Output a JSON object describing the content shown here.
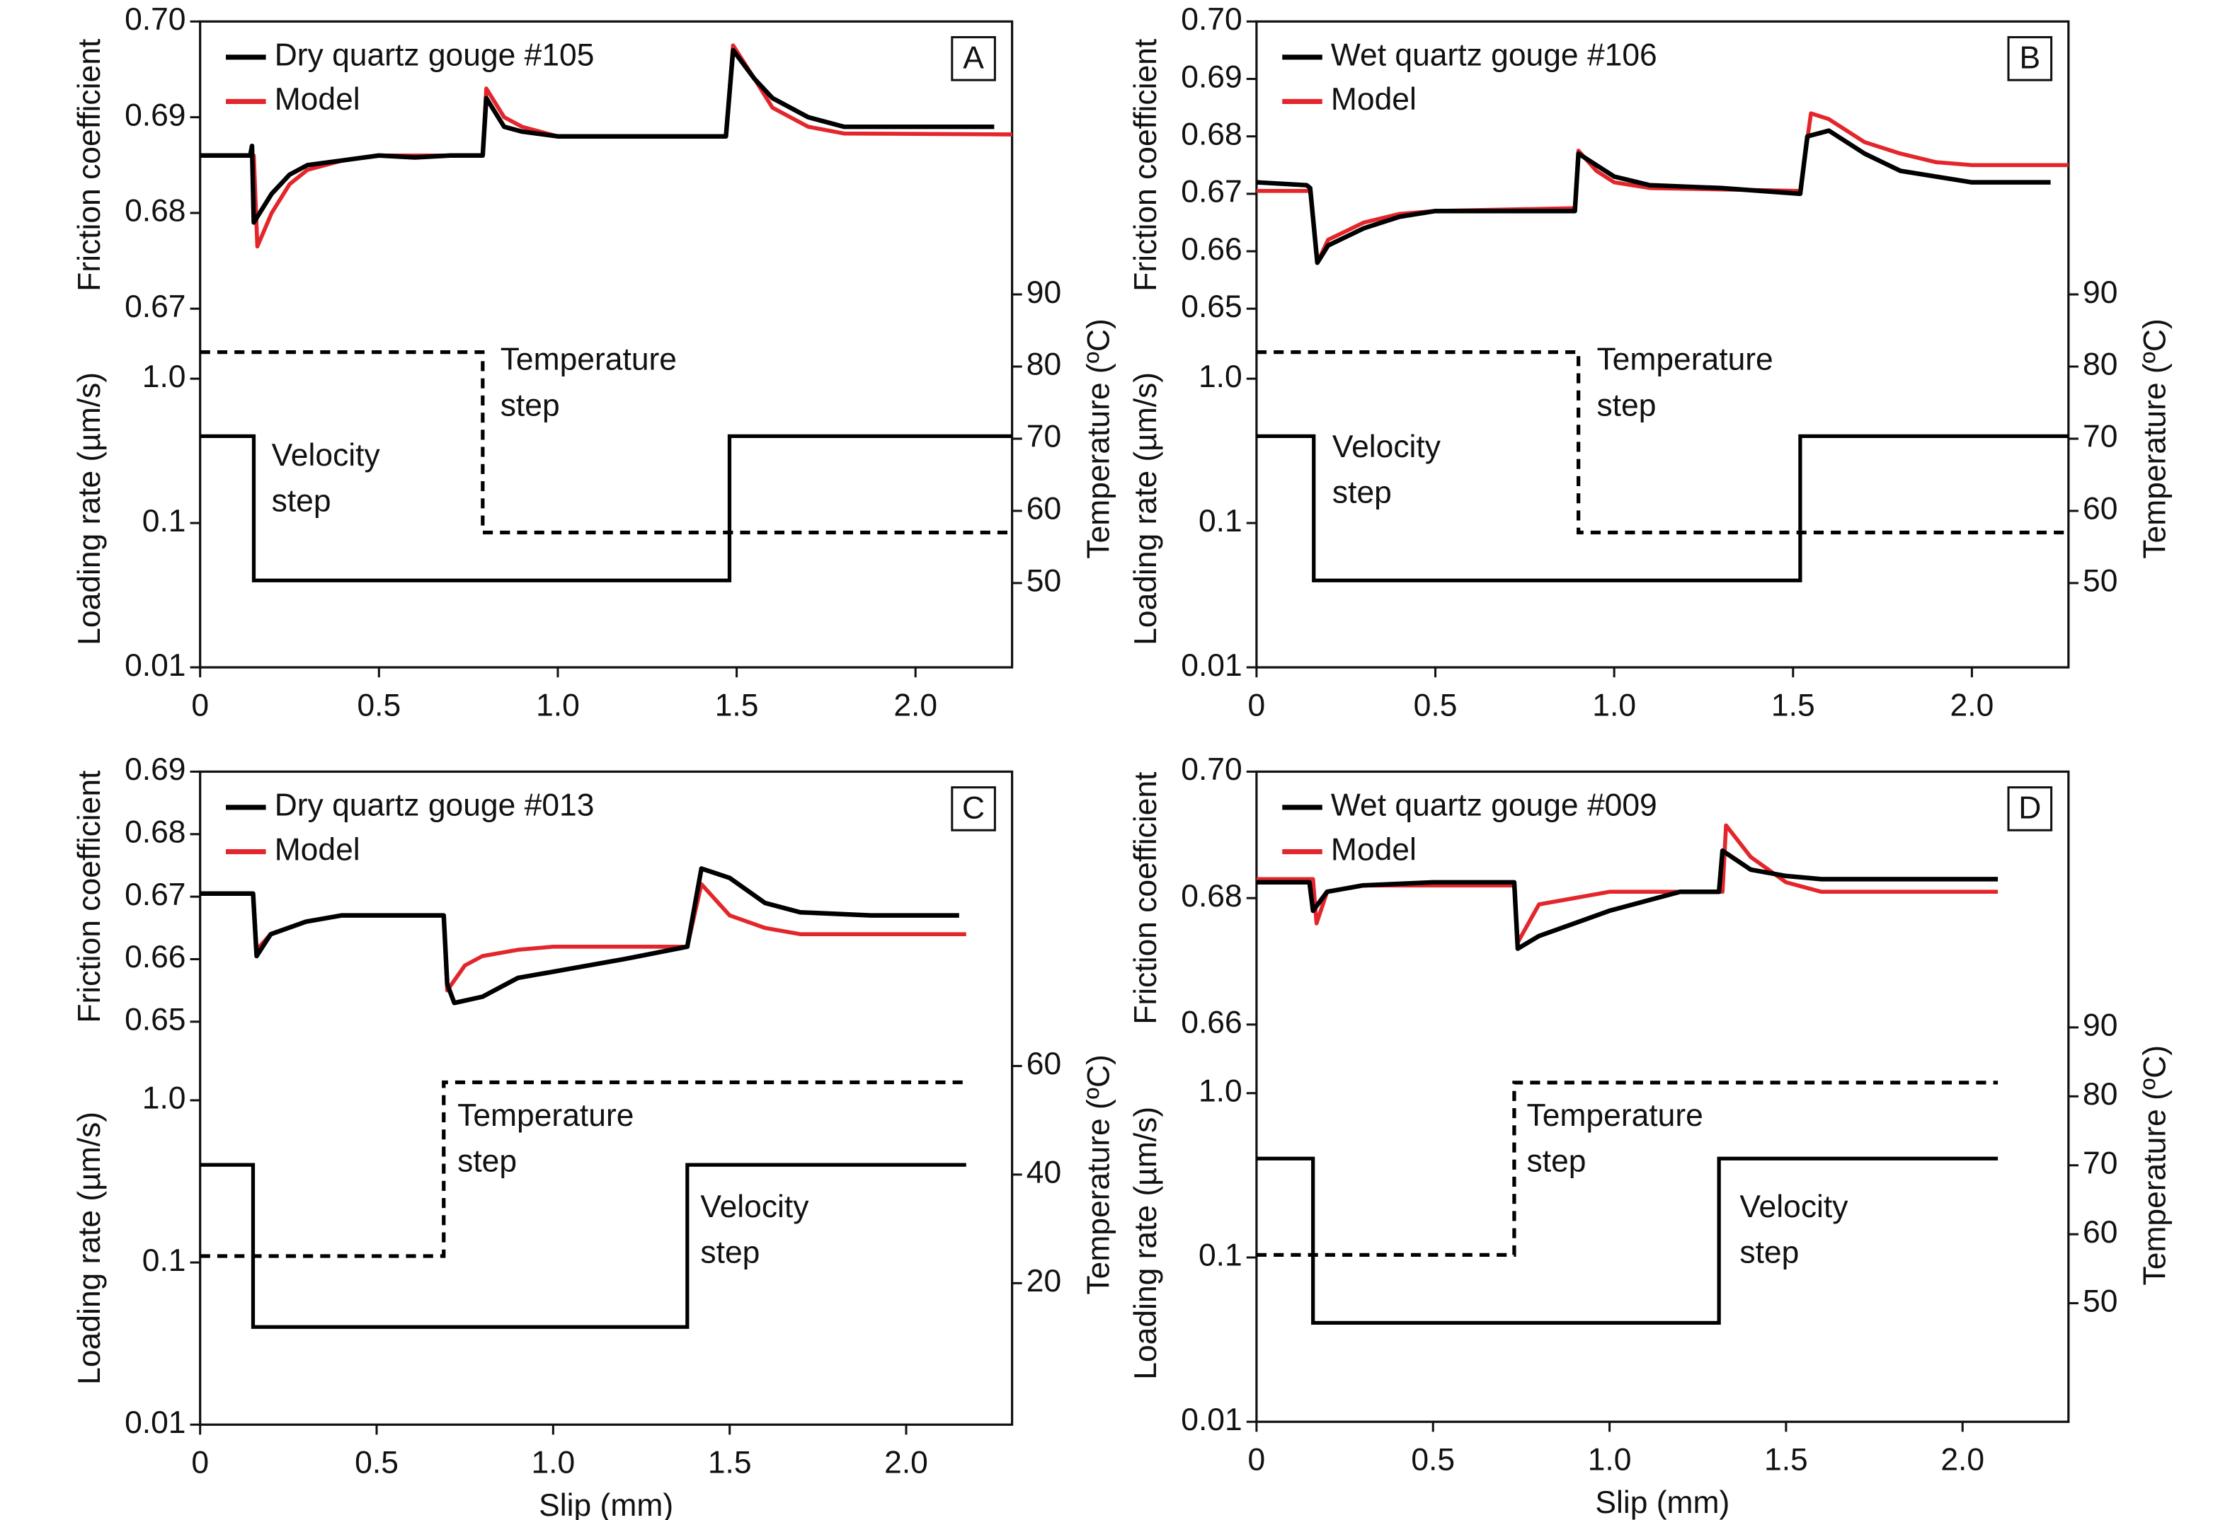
{
  "chart_data": [
    {
      "type": "line",
      "panel": "A",
      "legend": "upper left",
      "xlim": [
        0,
        2.27
      ],
      "xticks": [
        0,
        0.5,
        {
          "value": 1,
          "label": "1.0"
        },
        1.5,
        {
          "value": 2,
          "label": "2.0"
        }
      ],
      "friction": {
        "ylabel": "Friction coefficient",
        "ylim": [
          0.67,
          0.7
        ],
        "yticks": [
          0.67,
          0.68,
          0.69,
          {
            "value": 0.7,
            "label": "0.70"
          }
        ],
        "series": [
          {
            "name": "Dry quartz gouge #105",
            "color": "#000000",
            "x": [
              0,
              0.14,
              0.145,
              0.15,
              0.2,
              0.25,
              0.3,
              0.4,
              0.5,
              0.6,
              0.7,
              0.79,
              0.8,
              0.85,
              0.9,
              1.0,
              1.2,
              1.47,
              1.49,
              1.55,
              1.6,
              1.7,
              1.8,
              2.0,
              2.22
            ],
            "values": [
              0.686,
              0.686,
              0.687,
              0.679,
              0.682,
              0.684,
              0.685,
              0.6855,
              0.686,
              0.6858,
              0.686,
              0.686,
              0.692,
              0.689,
              0.6885,
              0.688,
              0.688,
              0.688,
              0.697,
              0.694,
              0.692,
              0.69,
              0.689,
              0.689,
              0.689
            ]
          },
          {
            "name": "Model",
            "color": "#e3262b",
            "x": [
              0,
              0.15,
              0.16,
              0.2,
              0.25,
              0.3,
              0.4,
              0.5,
              0.79,
              0.8,
              0.85,
              0.9,
              1.0,
              1.47,
              1.49,
              1.55,
              1.6,
              1.7,
              1.8,
              2.27
            ],
            "values": [
              0.686,
              0.686,
              0.6765,
              0.68,
              0.683,
              0.6845,
              0.6855,
              0.686,
              0.686,
              0.693,
              0.69,
              0.689,
              0.688,
              0.688,
              0.6975,
              0.694,
              0.691,
              0.689,
              0.6883,
              0.6882
            ]
          }
        ]
      },
      "loading": {
        "ylabel": "Loading rate (µm/s)",
        "log": true,
        "ylim": [
          0.01,
          1
        ],
        "yticks": [
          0.01,
          0.1,
          {
            "value": 1,
            "label": "1.0"
          }
        ],
        "color": "#000000",
        "x": [
          0,
          0.15,
          0.15,
          1.48,
          1.48,
          2.27
        ],
        "values": [
          0.4,
          0.4,
          0.04,
          0.04,
          0.4,
          0.4
        ]
      },
      "temperature": {
        "ylabel": "Temperature (ºC)",
        "y2lim": [
          50,
          90
        ],
        "y2ticks": [
          50,
          60,
          70,
          80,
          90
        ],
        "color": "#000000",
        "x": [
          0,
          0.79,
          0.79,
          2.27
        ],
        "values": [
          82,
          82,
          57,
          57
        ]
      },
      "annotations": [
        [
          "Velocity",
          "step"
        ],
        [
          "Temperature",
          "step"
        ]
      ]
    },
    {
      "type": "line",
      "panel": "B",
      "legend": "upper left",
      "xlim": [
        0,
        2.27
      ],
      "xticks": [
        0,
        0.5,
        {
          "value": 1,
          "label": "1.0"
        },
        1.5,
        {
          "value": 2,
          "label": "2.0"
        }
      ],
      "friction": {
        "ylabel": "Friction coefficient",
        "ylim": [
          0.65,
          0.7
        ],
        "yticks": [
          0.65,
          0.66,
          0.67,
          0.68,
          0.69,
          {
            "value": 0.7,
            "label": "0.70"
          }
        ],
        "series": [
          {
            "name": "Wet quartz gouge #106",
            "color": "#000000",
            "x": [
              0,
              0.14,
              0.15,
              0.17,
              0.2,
              0.3,
              0.4,
              0.5,
              0.7,
              0.89,
              0.9,
              0.95,
              1.0,
              1.1,
              1.3,
              1.52,
              1.54,
              1.6,
              1.7,
              1.8,
              1.9,
              2.0,
              2.22
            ],
            "values": [
              0.672,
              0.6715,
              0.671,
              0.658,
              0.661,
              0.664,
              0.666,
              0.667,
              0.667,
              0.667,
              0.677,
              0.675,
              0.673,
              0.6715,
              0.671,
              0.67,
              0.68,
              0.681,
              0.677,
              0.674,
              0.673,
              0.672,
              0.672
            ]
          },
          {
            "name": "Model",
            "color": "#e3262b",
            "x": [
              0,
              0.15,
              0.17,
              0.2,
              0.3,
              0.4,
              0.5,
              0.89,
              0.9,
              0.95,
              1.0,
              1.1,
              1.52,
              1.55,
              1.6,
              1.7,
              1.8,
              1.9,
              2.0,
              2.27
            ],
            "values": [
              0.6705,
              0.6705,
              0.658,
              0.662,
              0.665,
              0.6665,
              0.667,
              0.6675,
              0.6775,
              0.674,
              0.672,
              0.671,
              0.6705,
              0.684,
              0.683,
              0.679,
              0.677,
              0.6755,
              0.675,
              0.675
            ]
          }
        ]
      },
      "loading": {
        "ylabel": "Loading rate (µm/s)",
        "log": true,
        "ylim": [
          0.01,
          1
        ],
        "yticks": [
          0.01,
          0.1,
          {
            "value": 1,
            "label": "1.0"
          }
        ],
        "color": "#000000",
        "x": [
          0,
          0.16,
          0.16,
          1.52,
          1.52,
          2.27
        ],
        "values": [
          0.4,
          0.4,
          0.04,
          0.04,
          0.4,
          0.4
        ]
      },
      "temperature": {
        "ylabel": "Temperature (ºC)",
        "y2lim": [
          50,
          90
        ],
        "y2ticks": [
          50,
          60,
          70,
          80,
          90
        ],
        "color": "#000000",
        "x": [
          0,
          0.9,
          0.9,
          2.27
        ],
        "values": [
          82,
          82,
          57,
          57
        ]
      },
      "annotations": [
        [
          "Velocity",
          "step"
        ],
        [
          "Temperature",
          "step"
        ]
      ]
    },
    {
      "type": "line",
      "panel": "C",
      "legend": "upper left",
      "xlabel": "Slip (mm)",
      "xlim": [
        0,
        2.3
      ],
      "xticks": [
        0,
        0.5,
        {
          "value": 1,
          "label": "1.0"
        },
        1.5,
        {
          "value": 2,
          "label": "2.0"
        }
      ],
      "friction": {
        "ylabel": "Friction coefficient",
        "ylim": [
          0.65,
          0.69
        ],
        "yticks": [
          0.65,
          0.66,
          0.67,
          0.68,
          0.69
        ],
        "series": [
          {
            "name": "Dry quartz gouge #013",
            "color": "#000000",
            "x": [
              0,
              0.15,
              0.16,
              0.2,
              0.3,
              0.4,
              0.69,
              0.7,
              0.72,
              0.8,
              0.9,
              1.0,
              1.2,
              1.38,
              1.42,
              1.5,
              1.6,
              1.7,
              1.9,
              2.15
            ],
            "values": [
              0.6705,
              0.6705,
              0.6605,
              0.664,
              0.666,
              0.667,
              0.667,
              0.656,
              0.653,
              0.654,
              0.657,
              0.658,
              0.66,
              0.662,
              0.6745,
              0.673,
              0.669,
              0.6675,
              0.667,
              0.667
            ]
          },
          {
            "name": "Model",
            "color": "#e3262b",
            "x": [
              0,
              0.15,
              0.16,
              0.2,
              0.3,
              0.4,
              0.69,
              0.7,
              0.75,
              0.8,
              0.9,
              1.0,
              1.38,
              1.42,
              1.5,
              1.6,
              1.7,
              2.17
            ],
            "values": [
              0.6705,
              0.6705,
              0.6615,
              0.664,
              0.666,
              0.667,
              0.667,
              0.655,
              0.659,
              0.6605,
              0.6615,
              0.662,
              0.662,
              0.672,
              0.667,
              0.665,
              0.664,
              0.664
            ]
          }
        ]
      },
      "loading": {
        "ylabel": "Loading rate (µm/s)",
        "log": true,
        "ylim": [
          0.01,
          1
        ],
        "yticks": [
          0.01,
          0.1,
          {
            "value": 1,
            "label": "1.0"
          }
        ],
        "color": "#000000",
        "x": [
          0,
          0.15,
          0.15,
          1.38,
          1.38,
          2.17
        ],
        "values": [
          0.4,
          0.4,
          0.04,
          0.04,
          0.4,
          0.4
        ]
      },
      "temperature": {
        "ylabel": "Temperature (ºC)",
        "y2lim": [
          20,
          60
        ],
        "y2ticks": [
          20,
          40,
          60
        ],
        "color": "#000000",
        "x": [
          0,
          0.69,
          0.69,
          2.17
        ],
        "values": [
          25,
          25,
          57,
          57
        ]
      },
      "annotations": [
        [
          "Temperature",
          "step"
        ],
        [
          "Velocity",
          "step"
        ]
      ]
    },
    {
      "type": "line",
      "panel": "D",
      "legend": "upper left",
      "xlabel": "Slip (mm)",
      "xlim": [
        0,
        2.3
      ],
      "xticks": [
        0,
        0.5,
        {
          "value": 1,
          "label": "1.0"
        },
        1.5,
        {
          "value": 2,
          "label": "2.0"
        }
      ],
      "friction": {
        "ylabel": "Friction coefficient",
        "ylim": [
          0.66,
          0.7
        ],
        "yticks": [
          0.66,
          0.68,
          {
            "value": 0.7,
            "label": "0.70"
          }
        ],
        "series": [
          {
            "name": "Wet quartz gouge #009",
            "color": "#000000",
            "x": [
              0,
              0.15,
              0.16,
              0.2,
              0.3,
              0.5,
              0.73,
              0.74,
              0.8,
              0.9,
              1.0,
              1.1,
              1.2,
              1.31,
              1.32,
              1.4,
              1.5,
              1.6,
              2.1
            ],
            "values": [
              0.6825,
              0.6825,
              0.678,
              0.681,
              0.682,
              0.6825,
              0.6825,
              0.672,
              0.674,
              0.676,
              0.678,
              0.6795,
              0.681,
              0.681,
              0.6875,
              0.6845,
              0.6835,
              0.683,
              0.683
            ]
          },
          {
            "name": "Model",
            "color": "#e3262b",
            "x": [
              0,
              0.16,
              0.17,
              0.2,
              0.3,
              0.73,
              0.74,
              0.8,
              0.9,
              1.0,
              1.32,
              1.33,
              1.4,
              1.5,
              1.6,
              2.1
            ],
            "values": [
              0.683,
              0.683,
              0.676,
              0.681,
              0.682,
              0.682,
              0.673,
              0.679,
              0.68,
              0.681,
              0.681,
              0.6915,
              0.6865,
              0.6825,
              0.681,
              0.681
            ]
          }
        ]
      },
      "loading": {
        "ylabel": "Loading rate (µm/s)",
        "log": true,
        "ylim": [
          0.01,
          1
        ],
        "yticks": [
          0.01,
          0.1,
          {
            "value": 1,
            "label": "1.0"
          }
        ],
        "color": "#000000",
        "x": [
          0,
          0.16,
          0.16,
          1.31,
          1.31,
          2.1
        ],
        "values": [
          0.4,
          0.4,
          0.04,
          0.04,
          0.4,
          0.4
        ]
      },
      "temperature": {
        "ylabel": "Temperature (ºC)",
        "y2lim": [
          50,
          90
        ],
        "y2ticks": [
          50,
          60,
          70,
          80,
          90
        ],
        "color": "#000000",
        "x": [
          0,
          0.73,
          0.73,
          2.1
        ],
        "values": [
          57,
          57,
          82,
          82
        ]
      },
      "annotations": [
        [
          "Temperature",
          "step"
        ],
        [
          "Velocity",
          "step"
        ]
      ]
    }
  ]
}
